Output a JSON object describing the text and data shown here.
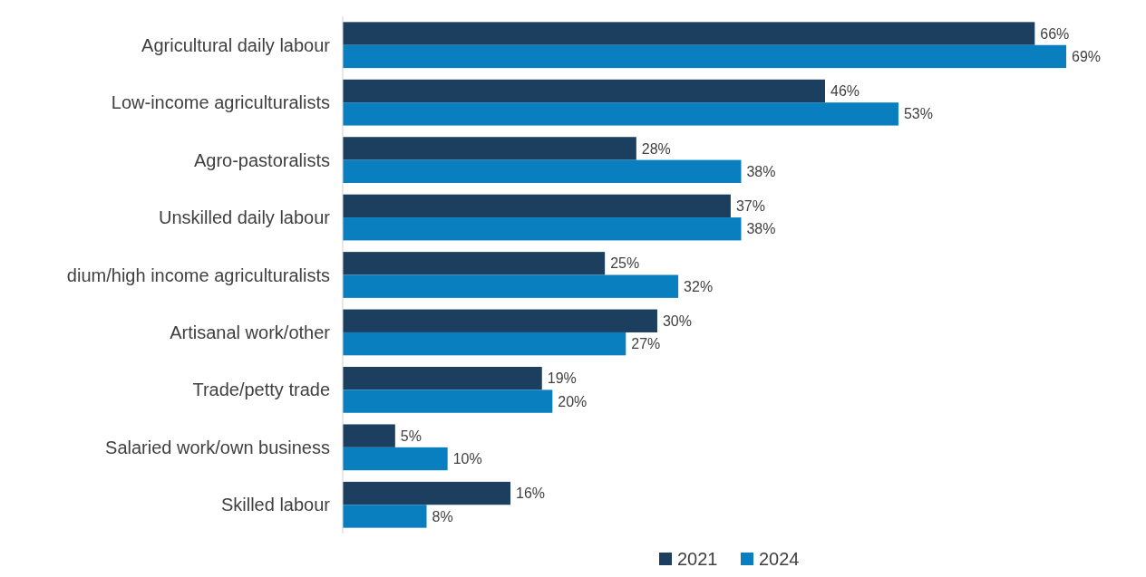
{
  "chart_data": {
    "type": "bar",
    "orientation": "horizontal",
    "categories": [
      "Agricultural daily labour",
      "Low-income agriculturalists",
      "Agro-pastoralists",
      "Unskilled daily labour",
      "dium/high income agriculturalists",
      "Artisanal work/other",
      "Trade/petty trade",
      "Salaried work/own business",
      "Skilled labour"
    ],
    "series": [
      {
        "name": "2021",
        "color": "#1c3f5f",
        "values": [
          66,
          46,
          28,
          37,
          25,
          30,
          19,
          5,
          16
        ],
        "value_labels": [
          "66%",
          "46%",
          "28%",
          "37%",
          "25%",
          "30%",
          "19%",
          "5%",
          "16%"
        ]
      },
      {
        "name": "2024",
        "color": "#0a7fc0",
        "values": [
          69,
          53,
          38,
          38,
          32,
          27,
          20,
          10,
          8
        ],
        "value_labels": [
          "69%",
          "53%",
          "38%",
          "38%",
          "32%",
          "27%",
          "20%",
          "10%",
          "8%"
        ]
      }
    ],
    "legend": "bottom"
  }
}
